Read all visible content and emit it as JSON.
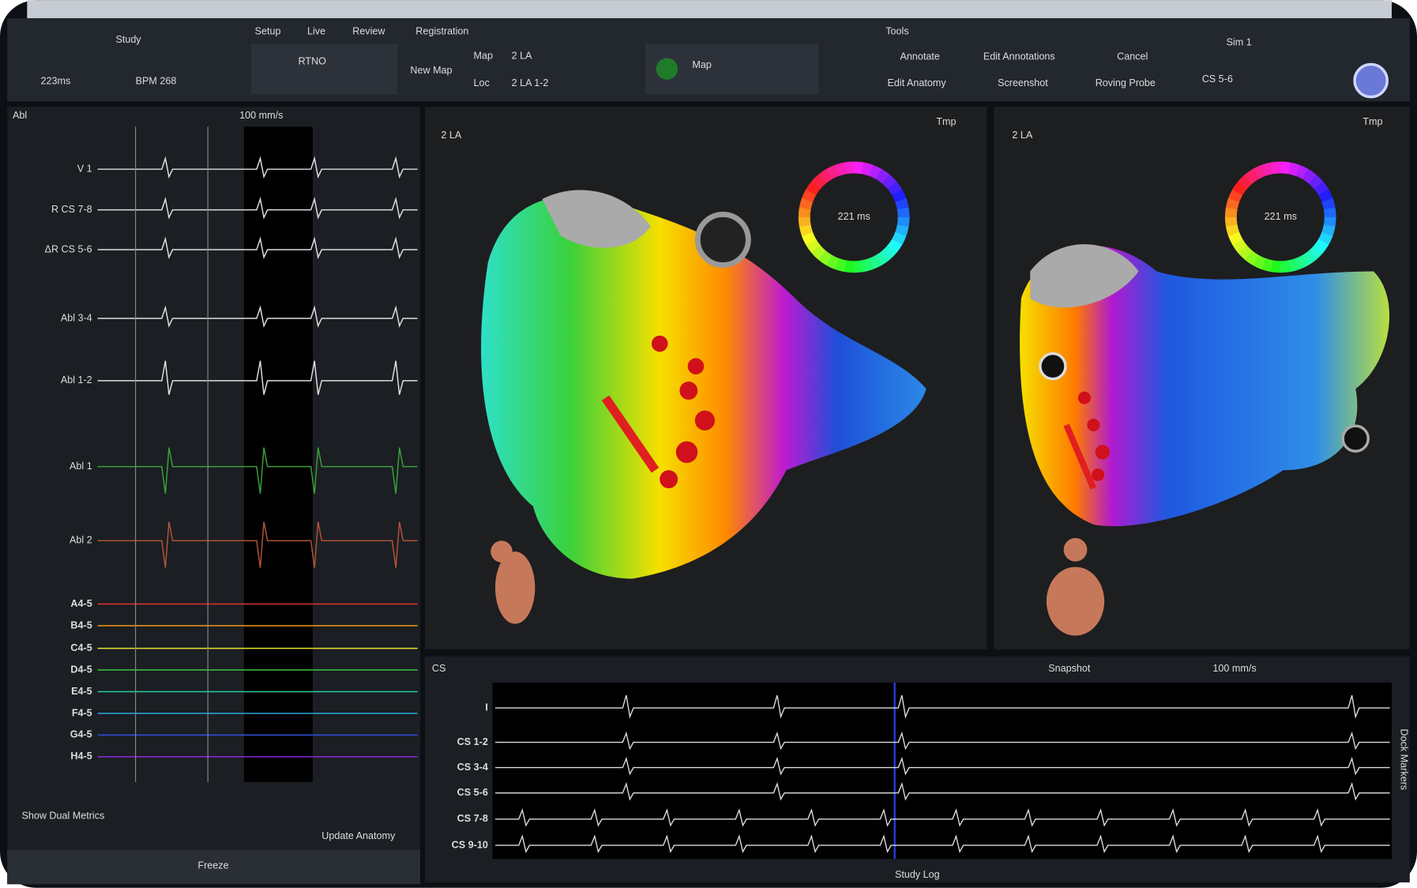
{
  "toolbar": {
    "study": "Study",
    "tabs": [
      "Setup",
      "Live",
      "Review",
      "Registration"
    ],
    "cycle": "223ms",
    "bpm": "BPM 268",
    "rhythm": "RTNO",
    "new_map": "New Map",
    "map_label": "Map",
    "map_value": "2 LA",
    "loc_label": "Loc",
    "loc_value": "2 LA 1-2",
    "map_button": "Map",
    "tools_title": "Tools",
    "tools": [
      "Annotate",
      "Edit Annotations",
      "Cancel",
      "Edit Anatomy",
      "Screenshot",
      "Roving Probe"
    ],
    "sim": "Sim 1",
    "cs": "CS 5-6"
  },
  "left_panel": {
    "source": "Abl",
    "sweep": "100 mm/s",
    "channels": [
      "V 1",
      "R CS 7-8",
      "ΔR CS 5-6",
      "Abl 3-4",
      "Abl 1-2",
      "Abl 1",
      "Abl 2",
      "A4-5",
      "B4-5",
      "C4-5",
      "D4-5",
      "E4-5",
      "F4-5",
      "G4-5",
      "H4-5"
    ],
    "show_dual": "Show Dual Metrics",
    "update_anatomy": "Update Anatomy",
    "freeze": "Freeze"
  },
  "maps": [
    {
      "title": "2 LA",
      "ring": "221 ms",
      "view": "Tmp"
    },
    {
      "title": "2 LA",
      "ring": "221 ms",
      "view": "Tmp"
    }
  ],
  "bottom_panel": {
    "source": "CS",
    "snapshot": "Snapshot",
    "sweep": "100 mm/s",
    "channels": [
      "I",
      "CS 1-2",
      "CS 3-4",
      "CS 5-6",
      "CS 7-8",
      "CS 9-10"
    ],
    "footer": "Study Log",
    "side": "Dock Markers"
  }
}
